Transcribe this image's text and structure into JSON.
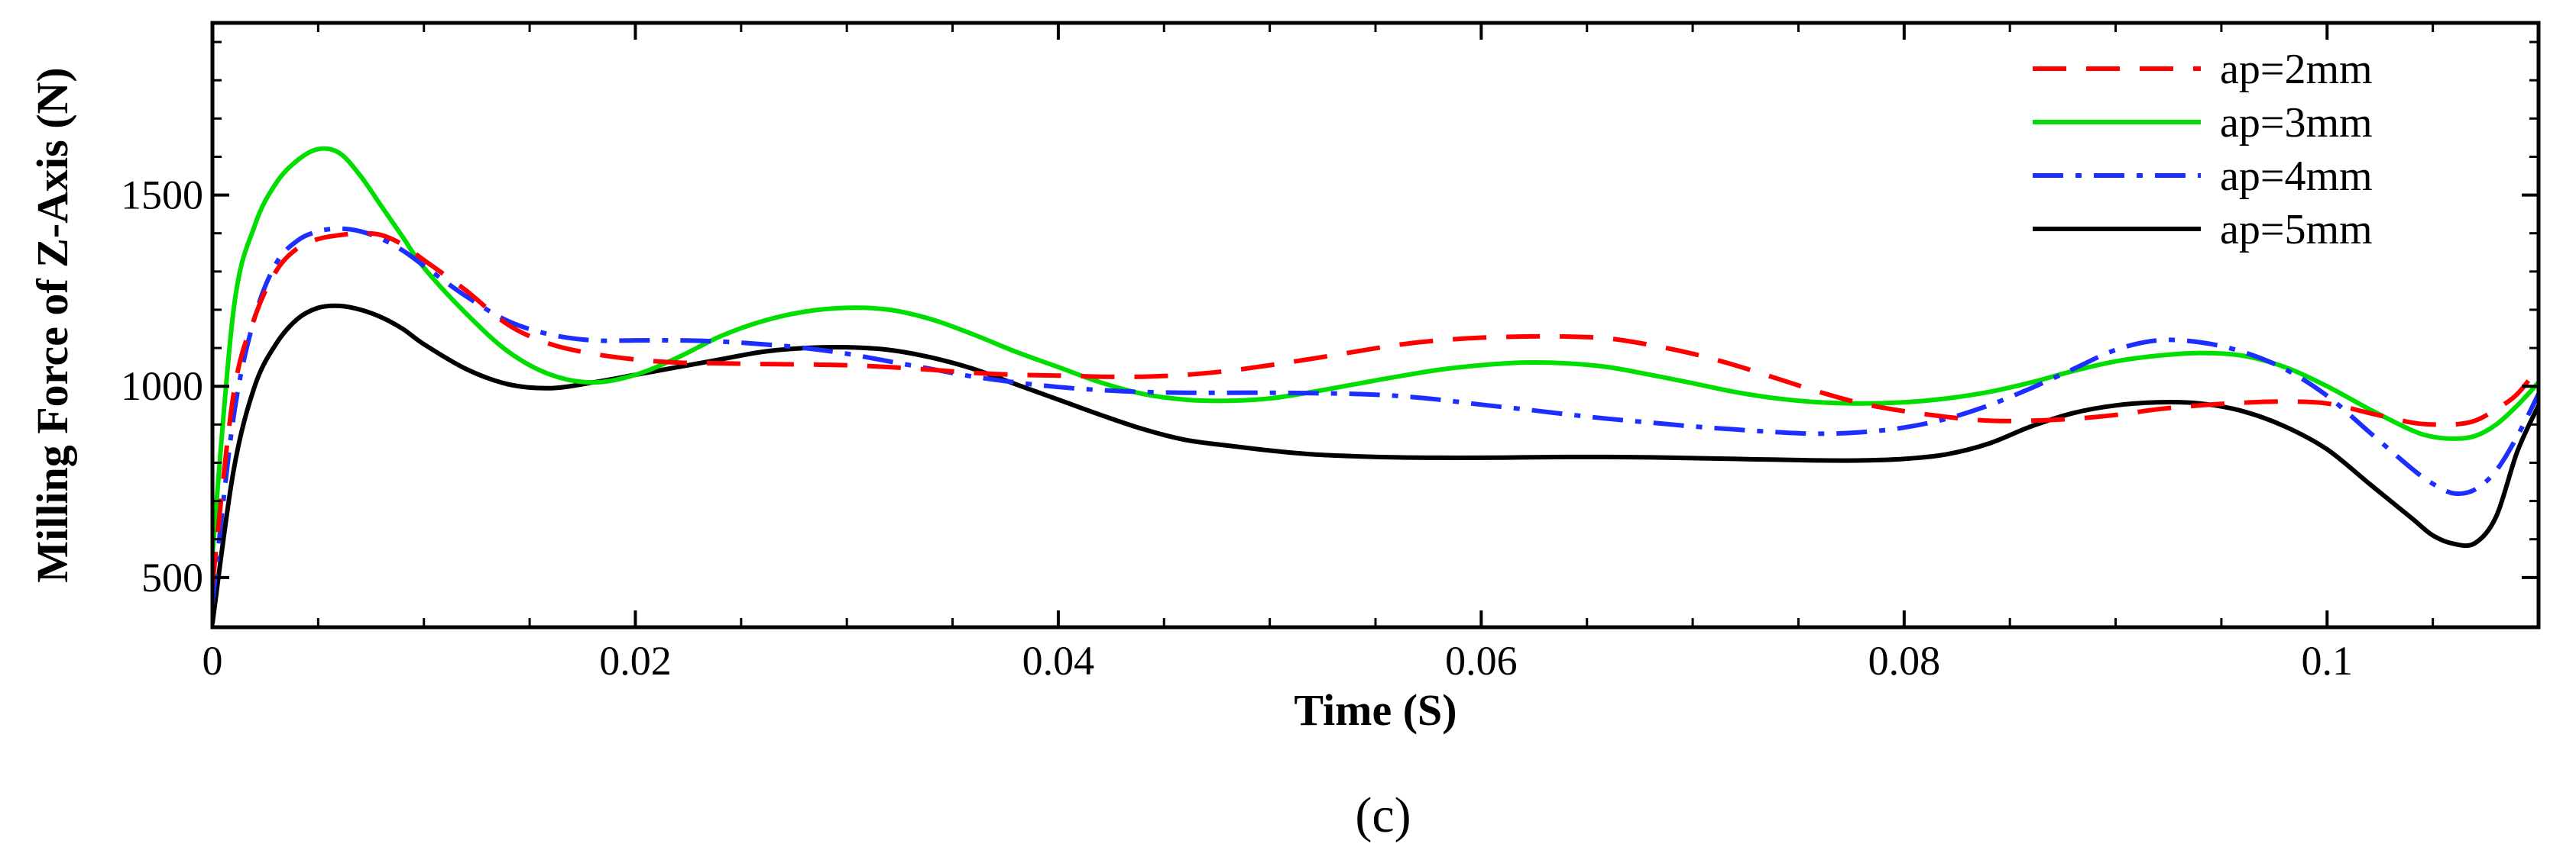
{
  "chart_data": {
    "type": "line",
    "title": "",
    "xlabel": "Time (S)",
    "ylabel": "Milling Force of Z-Axis (N)",
    "xlim": [
      0,
      0.11
    ],
    "ylim": [
      370,
      1950
    ],
    "xticks": [
      0,
      0.02,
      0.04,
      0.06,
      0.08,
      0.1
    ],
    "xtick_labels": [
      "0",
      "0.02",
      "0.04",
      "0.06",
      "0.08",
      "0.1"
    ],
    "yticks": [
      500,
      1000,
      1500
    ],
    "ytick_labels": [
      "500",
      "1000",
      "1500"
    ],
    "grid": false,
    "legend_position": "top-right",
    "panel_label": "(c)",
    "x": [
      0,
      0.001,
      0.002,
      0.003,
      0.004,
      0.005,
      0.006,
      0.007,
      0.008,
      0.009,
      0.01,
      0.012,
      0.014,
      0.016,
      0.018,
      0.02,
      0.022,
      0.024,
      0.026,
      0.028,
      0.03,
      0.032,
      0.034,
      0.036,
      0.038,
      0.04,
      0.042,
      0.044,
      0.046,
      0.048,
      0.05,
      0.052,
      0.054,
      0.056,
      0.058,
      0.06,
      0.062,
      0.064,
      0.066,
      0.068,
      0.07,
      0.072,
      0.074,
      0.076,
      0.078,
      0.08,
      0.082,
      0.084,
      0.086,
      0.088,
      0.09,
      0.092,
      0.094,
      0.096,
      0.098,
      0.1,
      0.102,
      0.104,
      0.105,
      0.106,
      0.107,
      0.108,
      0.109,
      0.11
    ],
    "series": [
      {
        "name": "ap=2mm",
        "color": "#ff0000",
        "style": "dashed",
        "values": [
          480,
          980,
          1180,
          1300,
          1360,
          1385,
          1395,
          1400,
          1395,
          1370,
          1330,
          1250,
          1160,
          1110,
          1085,
          1070,
          1062,
          1060,
          1058,
          1057,
          1055,
          1050,
          1043,
          1035,
          1030,
          1028,
          1025,
          1025,
          1030,
          1040,
          1055,
          1072,
          1090,
          1108,
          1120,
          1127,
          1130,
          1130,
          1125,
          1108,
          1085,
          1055,
          1020,
          985,
          955,
          935,
          920,
          910,
          910,
          915,
          925,
          940,
          950,
          957,
          960,
          955,
          930,
          905,
          900,
          900,
          910,
          940,
          980,
          1050
        ]
      },
      {
        "name": "ap=3mm",
        "color": "#00dd00",
        "style": "solid",
        "values": [
          560,
          1200,
          1420,
          1530,
          1590,
          1620,
          1610,
          1550,
          1470,
          1390,
          1310,
          1190,
          1090,
          1030,
          1010,
          1030,
          1075,
          1130,
          1170,
          1195,
          1205,
          1200,
          1175,
          1135,
          1090,
          1050,
          1010,
          980,
          965,
          962,
          968,
          985,
          1005,
          1025,
          1043,
          1055,
          1062,
          1060,
          1050,
          1030,
          1008,
          985,
          968,
          958,
          955,
          958,
          968,
          985,
          1010,
          1040,
          1065,
          1080,
          1087,
          1080,
          1050,
          1000,
          940,
          885,
          868,
          863,
          870,
          900,
          950,
          1010
        ]
      },
      {
        "name": "ap=4mm",
        "color": "#1c2fff",
        "style": "dashdot",
        "values": [
          430,
          920,
          1180,
          1320,
          1380,
          1405,
          1412,
          1405,
          1385,
          1355,
          1315,
          1235,
          1170,
          1135,
          1120,
          1120,
          1120,
          1117,
          1110,
          1100,
          1085,
          1065,
          1045,
          1025,
          1010,
          998,
          990,
          985,
          983,
          983,
          983,
          982,
          980,
          975,
          965,
          952,
          940,
          927,
          915,
          905,
          895,
          887,
          880,
          876,
          880,
          892,
          915,
          950,
          995,
          1045,
          1095,
          1120,
          1115,
          1090,
          1045,
          975,
          880,
          785,
          745,
          720,
          730,
          780,
          870,
          980
        ]
      },
      {
        "name": "ap=5mm",
        "color": "#000000",
        "style": "solid",
        "values": [
          380,
          780,
          1000,
          1110,
          1175,
          1205,
          1210,
          1200,
          1180,
          1150,
          1110,
          1045,
          1005,
          995,
          1010,
          1030,
          1050,
          1070,
          1090,
          1100,
          1102,
          1095,
          1075,
          1045,
          1005,
          965,
          925,
          888,
          860,
          845,
          832,
          822,
          817,
          814,
          813,
          813,
          814,
          815,
          815,
          814,
          812,
          810,
          808,
          806,
          806,
          810,
          822,
          850,
          895,
          930,
          950,
          958,
          955,
          935,
          895,
          835,
          745,
          655,
          610,
          588,
          590,
          660,
          830,
          950
        ]
      }
    ]
  }
}
